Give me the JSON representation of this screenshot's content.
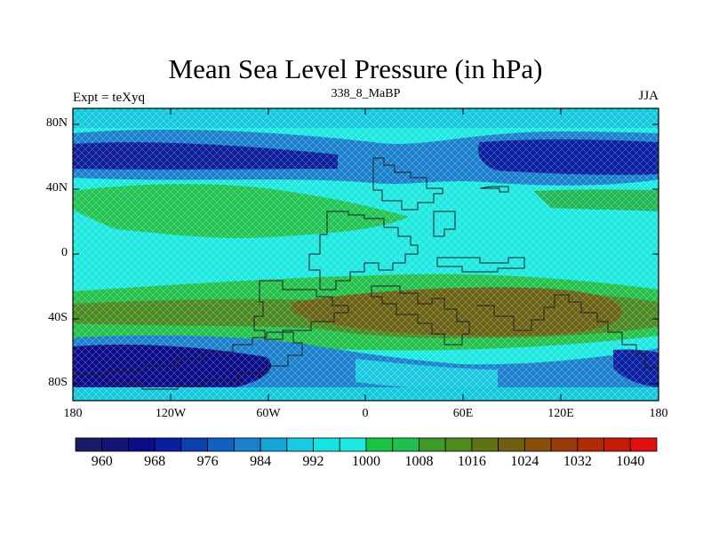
{
  "figure": {
    "title": "Mean Sea Level Pressure (in hPa)",
    "subtitle": "338_8_MaBP",
    "left_label": "Expt = teXyq",
    "right_label": "JJA"
  },
  "map": {
    "projection": "cylindrical-equidistant",
    "lon_range": [
      -180,
      180
    ],
    "lat_range": [
      -90,
      90
    ],
    "lon_ticks": [
      "180",
      "120W",
      "60W",
      "0",
      "60E",
      "120E",
      "180"
    ],
    "lat_ticks": [
      "80N",
      "40N",
      "0",
      "40S",
      "80S"
    ],
    "pattern": "cross-hatched diamond fill between contour bands"
  },
  "colorbar": {
    "labels": [
      "960",
      "968",
      "976",
      "984",
      "992",
      "1000",
      "1008",
      "1016",
      "1024",
      "1032",
      "1040"
    ],
    "colors": [
      "#1a1a66",
      "#141475",
      "#0c0c8a",
      "#0a1ea0",
      "#0a40b0",
      "#1060c0",
      "#1a80cc",
      "#14a4d8",
      "#1ac8e0",
      "#14e4e0",
      "#1ce8e0",
      "#18c444",
      "#20c050",
      "#3e9a28",
      "#4e8a1e",
      "#5e7414",
      "#6e6010",
      "#86500c",
      "#9a3a0a",
      "#b02a08",
      "#c41a06",
      "#e01010"
    ]
  },
  "field": {
    "units": "hPa",
    "season": "JJA",
    "features": [
      "low-pressure belt near 60N",
      "high-pressure band near 35S",
      "low-pressure belt near 65S"
    ]
  }
}
